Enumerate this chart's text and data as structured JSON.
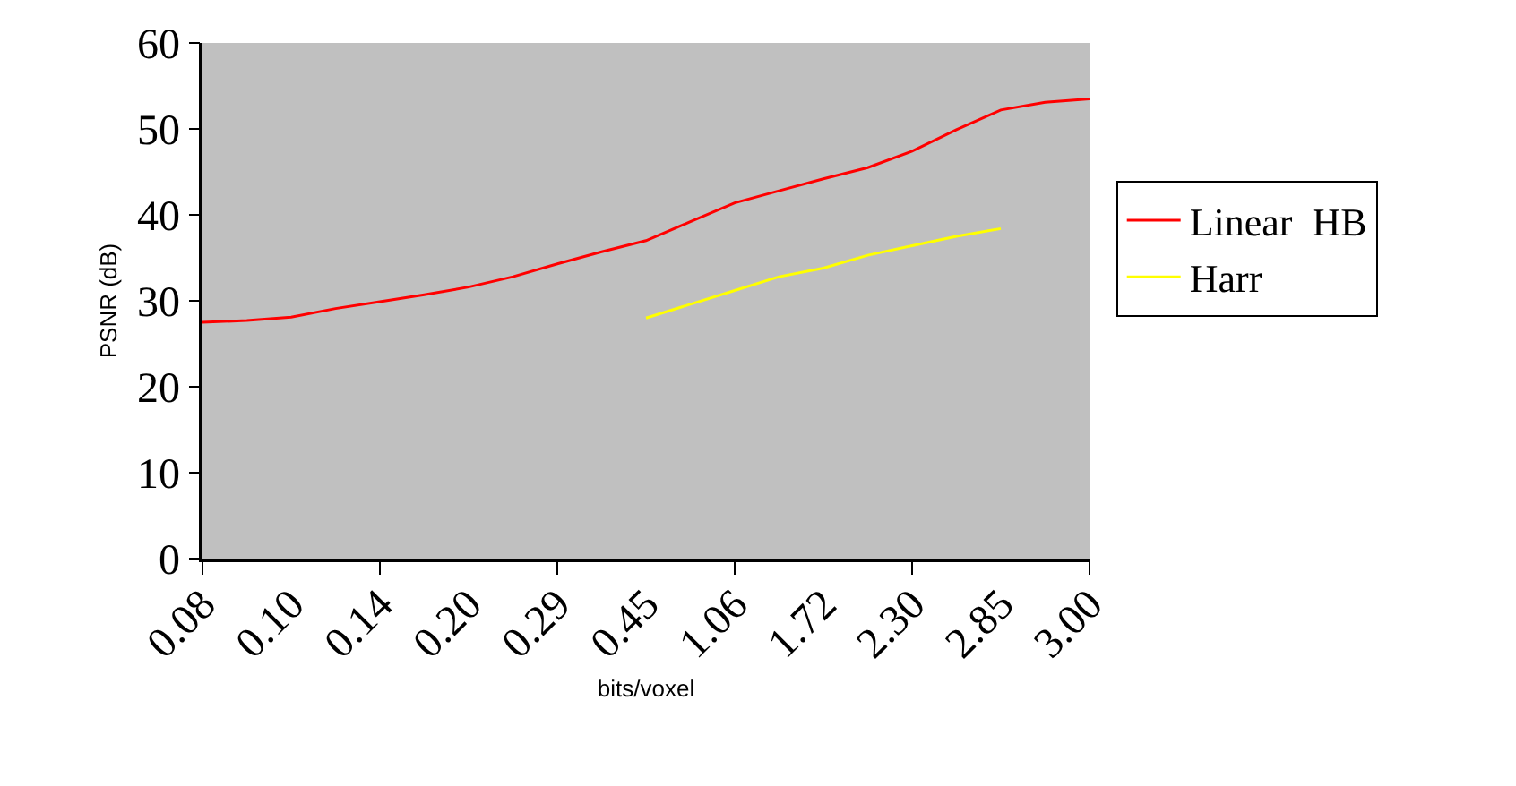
{
  "chart_data": {
    "type": "line",
    "xlabel": "bits/voxel",
    "ylabel": "PSNR (dB)",
    "categories": [
      "0.08",
      null,
      "0.10",
      null,
      "0.14",
      null,
      "0.20",
      null,
      "0.29",
      null,
      "0.45",
      null,
      "1.06",
      null,
      "1.72",
      null,
      "2.30",
      null,
      "2.85",
      null,
      "3.00"
    ],
    "series": [
      {
        "name": "Linear  HB",
        "color": "#ff0000",
        "values": [
          27.5,
          27.7,
          28.1,
          29.1,
          29.9,
          30.7,
          31.6,
          32.8,
          34.3,
          35.7,
          37.0,
          39.2,
          41.4,
          42.8,
          44.2,
          45.5,
          47.4,
          49.9,
          52.2,
          53.1,
          53.5
        ]
      },
      {
        "name": "Harr",
        "color": "#ffff00",
        "values": [
          null,
          null,
          null,
          null,
          null,
          null,
          null,
          null,
          null,
          null,
          28.0,
          29.6,
          31.2,
          32.8,
          33.8,
          35.3,
          36.4,
          37.5,
          38.4,
          null,
          null
        ]
      }
    ],
    "ylim": [
      0,
      60
    ],
    "yticks": [
      0,
      10,
      20,
      30,
      40,
      50,
      60
    ],
    "grid": false,
    "legend": "right",
    "marker": "none",
    "line_style": "solid"
  }
}
